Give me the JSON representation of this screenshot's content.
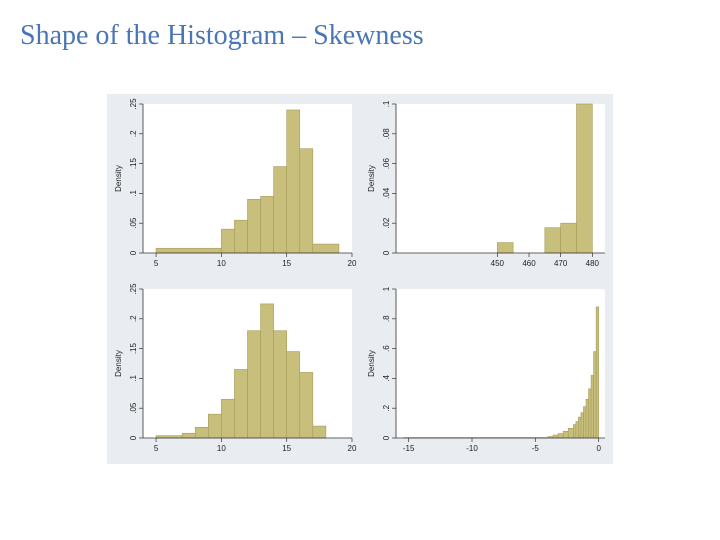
{
  "slide": {
    "title": "Shape of the Histogram – Skewness"
  },
  "chart_data": [
    {
      "type": "bar",
      "title": "",
      "xlabel": "",
      "ylabel": "Density",
      "xlim": [
        4,
        20
      ],
      "ylim": [
        0,
        0.25
      ],
      "xticks": [
        5,
        10,
        15,
        20
      ],
      "yticks": [
        0,
        0.05,
        0.1,
        0.15,
        0.2,
        0.25
      ],
      "ytick_labels": [
        "0",
        ".05",
        ".1",
        ".15",
        ".2",
        ".25"
      ],
      "bins": [
        {
          "x0": 5,
          "x1": 10,
          "y": 0.008
        },
        {
          "x0": 10,
          "x1": 11,
          "y": 0.04
        },
        {
          "x0": 11,
          "x1": 12,
          "y": 0.055
        },
        {
          "x0": 12,
          "x1": 13,
          "y": 0.09
        },
        {
          "x0": 13,
          "x1": 14,
          "y": 0.095
        },
        {
          "x0": 14,
          "x1": 15,
          "y": 0.145
        },
        {
          "x0": 15,
          "x1": 16,
          "y": 0.24
        },
        {
          "x0": 16,
          "x1": 17,
          "y": 0.175
        },
        {
          "x0": 17,
          "x1": 19,
          "y": 0.015
        }
      ]
    },
    {
      "type": "bar",
      "title": "",
      "xlabel": "",
      "ylabel": "Density",
      "xlim": [
        418,
        484
      ],
      "ylim": [
        0,
        0.1
      ],
      "xticks": [
        450,
        460,
        470,
        480
      ],
      "yticks": [
        0,
        0.02,
        0.04,
        0.06,
        0.08,
        0.1
      ],
      "ytick_labels": [
        "0",
        ".02",
        ".04",
        ".06",
        ".08",
        ".1"
      ],
      "bins": [
        {
          "x0": 450,
          "x1": 455,
          "y": 0.007
        },
        {
          "x0": 465,
          "x1": 470,
          "y": 0.017
        },
        {
          "x0": 470,
          "x1": 475,
          "y": 0.02
        },
        {
          "x0": 475,
          "x1": 480,
          "y": 0.1
        }
      ]
    },
    {
      "type": "bar",
      "title": "",
      "xlabel": "",
      "ylabel": "Density",
      "xlim": [
        4,
        20
      ],
      "ylim": [
        0,
        0.25
      ],
      "xticks": [
        5,
        10,
        15,
        20
      ],
      "yticks": [
        0,
        0.05,
        0.1,
        0.15,
        0.2,
        0.25
      ],
      "ytick_labels": [
        "0",
        ".05",
        ".1",
        ".15",
        ".2",
        ".25"
      ],
      "bins": [
        {
          "x0": 5,
          "x1": 7,
          "y": 0.004
        },
        {
          "x0": 7,
          "x1": 8,
          "y": 0.008
        },
        {
          "x0": 8,
          "x1": 9,
          "y": 0.018
        },
        {
          "x0": 9,
          "x1": 10,
          "y": 0.04
        },
        {
          "x0": 10,
          "x1": 11,
          "y": 0.065
        },
        {
          "x0": 11,
          "x1": 12,
          "y": 0.115
        },
        {
          "x0": 12,
          "x1": 13,
          "y": 0.18
        },
        {
          "x0": 13,
          "x1": 14,
          "y": 0.225
        },
        {
          "x0": 14,
          "x1": 15,
          "y": 0.18
        },
        {
          "x0": 15,
          "x1": 16,
          "y": 0.145
        },
        {
          "x0": 16,
          "x1": 17,
          "y": 0.11
        },
        {
          "x0": 17,
          "x1": 18,
          "y": 0.02
        }
      ]
    },
    {
      "type": "bar",
      "title": "",
      "xlabel": "",
      "ylabel": "Density",
      "xlim": [
        -16,
        0.5
      ],
      "ylim": [
        0,
        1
      ],
      "xticks": [
        -15,
        -10,
        -5,
        0
      ],
      "yticks": [
        0,
        0.2,
        0.4,
        0.6,
        0.8,
        1
      ],
      "ytick_labels": [
        "0",
        ".2",
        ".4",
        ".6",
        ".8",
        "1"
      ],
      "bins": [
        {
          "x0": -15.4,
          "x1": -4.0,
          "y": 0.003
        },
        {
          "x0": -4.0,
          "x1": -3.6,
          "y": 0.01
        },
        {
          "x0": -3.6,
          "x1": -3.2,
          "y": 0.02
        },
        {
          "x0": -3.2,
          "x1": -2.8,
          "y": 0.03
        },
        {
          "x0": -2.8,
          "x1": -2.4,
          "y": 0.045
        },
        {
          "x0": -2.4,
          "x1": -2.0,
          "y": 0.065
        },
        {
          "x0": -2.0,
          "x1": -1.8,
          "y": 0.09
        },
        {
          "x0": -1.8,
          "x1": -1.6,
          "y": 0.11
        },
        {
          "x0": -1.6,
          "x1": -1.4,
          "y": 0.14
        },
        {
          "x0": -1.4,
          "x1": -1.2,
          "y": 0.17
        },
        {
          "x0": -1.2,
          "x1": -1.0,
          "y": 0.21
        },
        {
          "x0": -1.0,
          "x1": -0.8,
          "y": 0.26
        },
        {
          "x0": -0.8,
          "x1": -0.6,
          "y": 0.33
        },
        {
          "x0": -0.6,
          "x1": -0.4,
          "y": 0.42
        },
        {
          "x0": -0.4,
          "x1": -0.2,
          "y": 0.58
        },
        {
          "x0": -0.2,
          "x1": 0.0,
          "y": 0.88
        }
      ]
    }
  ]
}
